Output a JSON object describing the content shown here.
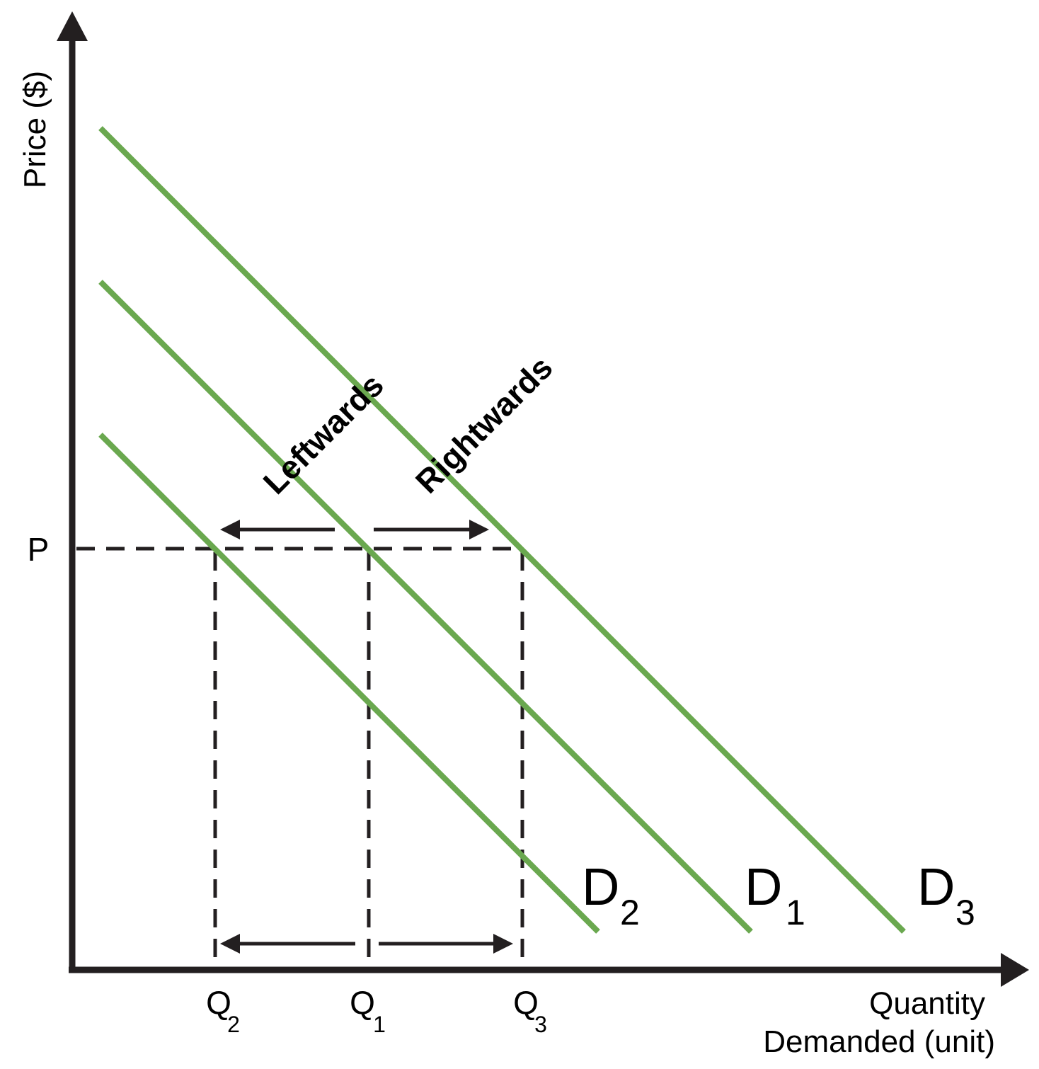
{
  "diagram": {
    "axes": {
      "y_label": "Price ($)",
      "x_label_line1": "Quantity",
      "x_label_line2": "Demanded (unit)"
    },
    "price_level": "P",
    "quantity_ticks": [
      {
        "letter": "Q",
        "sub": "2"
      },
      {
        "letter": "Q",
        "sub": "1"
      },
      {
        "letter": "Q",
        "sub": "3"
      }
    ],
    "curves": [
      {
        "letter": "D",
        "sub": "2"
      },
      {
        "letter": "D",
        "sub": "1"
      },
      {
        "letter": "D",
        "sub": "3"
      }
    ],
    "shift_labels": {
      "left": "Leftwards",
      "right": "Rightwards"
    },
    "colors": {
      "curve": "#6aa84f",
      "axis": "#231f20"
    }
  }
}
